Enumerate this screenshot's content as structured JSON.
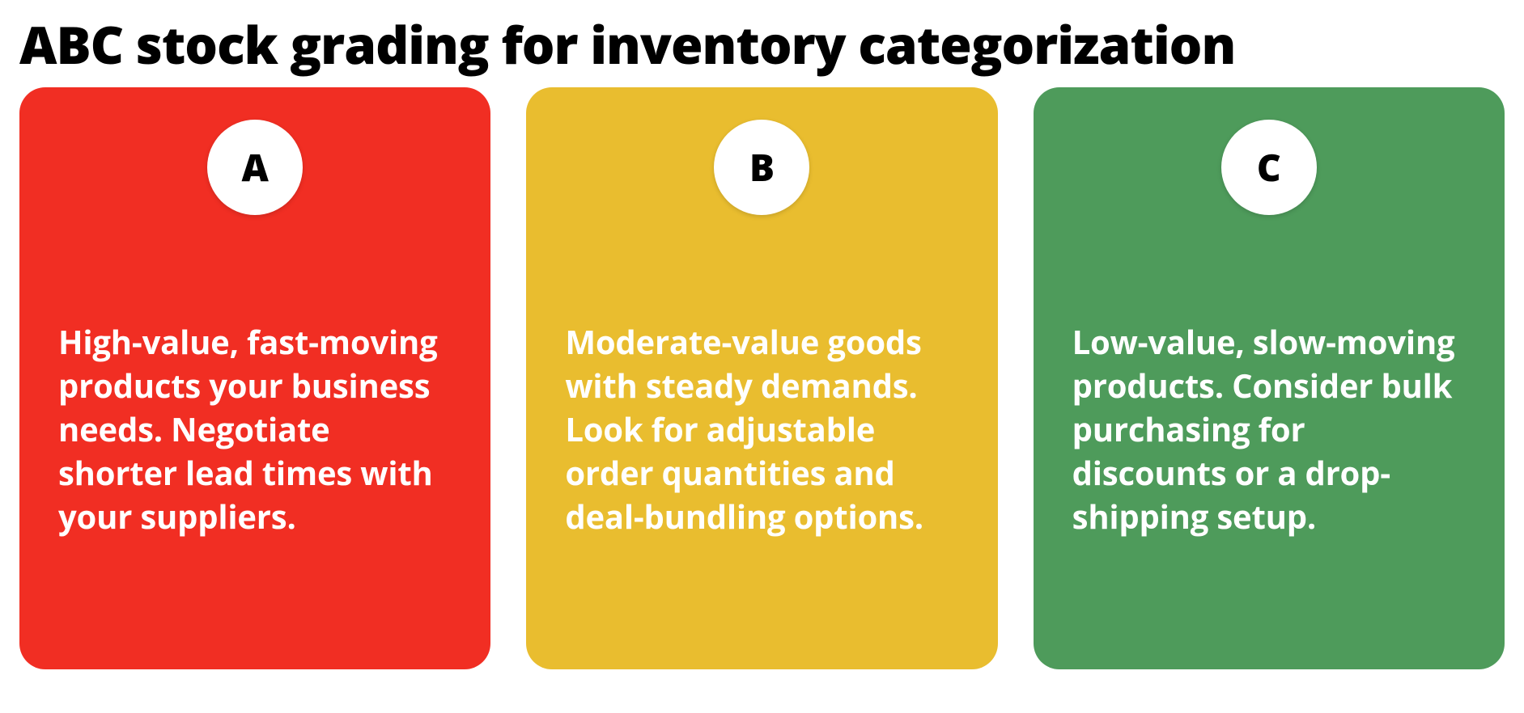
{
  "title": "ABC stock grading for inventory categorization",
  "title_color": "#000000",
  "title_fontsize": 64,
  "background_color": "#ffffff",
  "circle_background": "#ffffff",
  "circle_letter_color": "#000000",
  "card_text_color": "#ffffff",
  "card_border_radius": 32,
  "card_gap": 44,
  "cards": [
    {
      "letter": "A",
      "background_color": "#f12e23",
      "text": "High-value, fast-moving products your business needs. Negotiate shorter lead times with your suppliers."
    },
    {
      "letter": "B",
      "background_color": "#e9bd2f",
      "text": "Moderate-value goods with steady demands. Look for adjustable order quantities and deal-bundling options."
    },
    {
      "letter": "C",
      "background_color": "#4e9b5b",
      "text": "Low-value, slow-moving products. Consider bulk purchasing for discounts or a drop-shipping setup."
    }
  ]
}
